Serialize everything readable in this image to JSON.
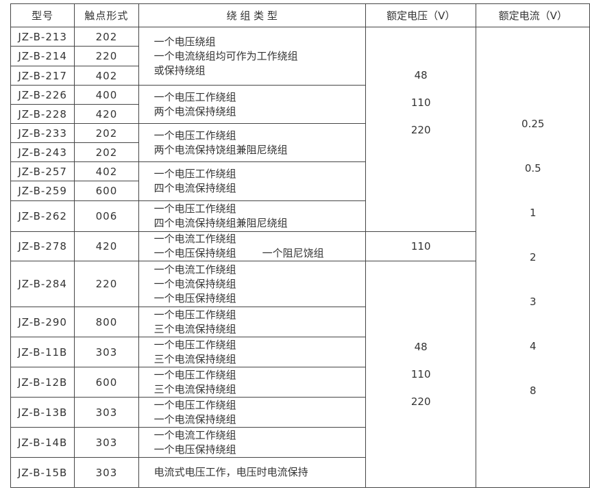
{
  "headers": [
    "型号",
    "触点形式",
    "绕 组 类 型",
    "额定电压（V）",
    "额定电流（V）"
  ],
  "rows": [
    {
      "model": "JZ-B-213",
      "contact": "202"
    },
    {
      "model": "JZ-B-214",
      "contact": "220"
    },
    {
      "model": "JZ-B-217",
      "contact": "402"
    },
    {
      "model": "JZ-B-226",
      "contact": "400"
    },
    {
      "model": "JZ-B-228",
      "contact": "420"
    },
    {
      "model": "JZ-B-233",
      "contact": "202"
    },
    {
      "model": "JZ-B-243",
      "contact": "202"
    },
    {
      "model": "JZ-B-257",
      "contact": "402"
    },
    {
      "model": "JZ-B-259",
      "contact": "600"
    },
    {
      "model": "JZ-B-262",
      "contact": "006"
    },
    {
      "model": "JZ-B-278",
      "contact": "420"
    },
    {
      "model": "JZ-B-284",
      "contact": "220"
    },
    {
      "model": "JZ-B-290",
      "contact": "800"
    },
    {
      "model": "JZ-B-11B",
      "contact": "303"
    },
    {
      "model": "JZ-B-12B",
      "contact": "600"
    },
    {
      "model": "JZ-B-13B",
      "contact": "303"
    },
    {
      "model": "JZ-B-14B",
      "contact": "303"
    },
    {
      "model": "JZ-B-15B",
      "contact": "303"
    }
  ],
  "windings": [
    [
      "一个电压绕组",
      "一个电流绕组均可作为工作绕组",
      "或保持绕组"
    ],
    [
      "一个电压工作绕组",
      "两个电流保持绕组"
    ],
    [
      "一个电压工作绕组",
      "两个电流保持饶组兼阻尼绕组"
    ],
    [
      "一个电压工作绕组",
      "四个电流保持绕组"
    ],
    [
      "一个电压工作绕组",
      "四个电流保持绕组兼阻尼绕组"
    ],
    [
      "一个电流工作绕组",
      "一个电压保持绕组",
      "一个阻尼饶组"
    ],
    [
      "一个电流工作绕组",
      "一个电流保持绕组",
      "一个电压保持绕组"
    ],
    [
      "一个电压工作绕组",
      "三个电流保持绕组"
    ],
    [
      "一个电压工作绕组",
      "三个电流保持绕组"
    ],
    [
      "一个电压工作绕组",
      "三个电流保持绕组"
    ],
    [
      "一个电压工作绕组",
      "一个电流保持绕组"
    ],
    [
      "一个电流工作绕组",
      "一个电压保持绕组"
    ],
    [
      "电流式电压工作，电压时电流保持"
    ]
  ],
  "voltage": {
    "group1": [
      "48",
      "110",
      "220"
    ],
    "group2": [
      "110"
    ],
    "group3": [
      "48",
      "110",
      "220"
    ]
  },
  "current": [
    "0.25",
    "0.5",
    "1",
    "2",
    "3",
    "4",
    "8"
  ]
}
